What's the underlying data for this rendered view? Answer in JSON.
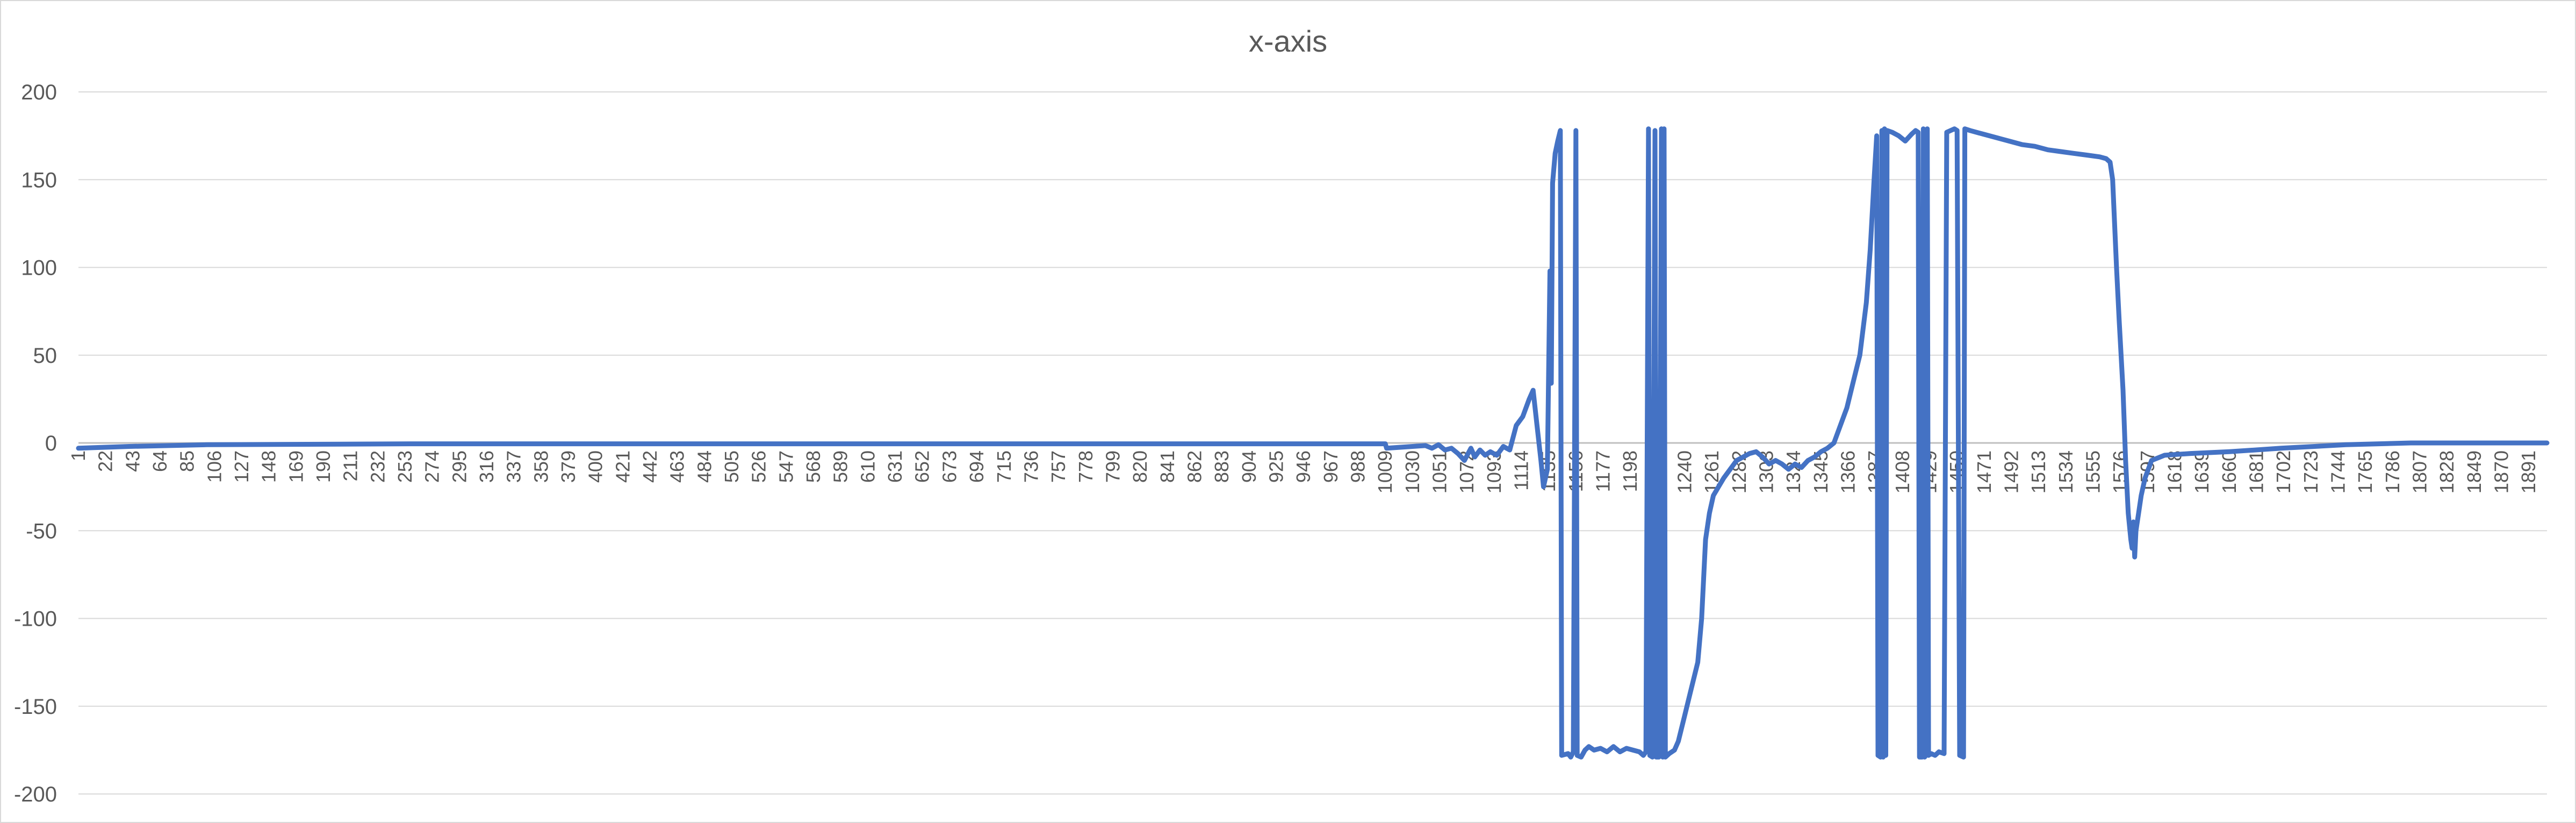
{
  "chart_data": {
    "type": "line",
    "title": "x-axis",
    "xlabel": "",
    "ylabel": "",
    "ylim": [
      -200,
      200
    ],
    "y_ticks": [
      200,
      150,
      100,
      50,
      0,
      -50,
      -100,
      -150,
      -200
    ],
    "x_range": [
      1,
      1905
    ],
    "x_ticks": [
      1,
      22,
      43,
      64,
      85,
      106,
      127,
      148,
      169,
      190,
      211,
      232,
      253,
      274,
      295,
      316,
      337,
      358,
      379,
      400,
      421,
      442,
      463,
      484,
      505,
      526,
      547,
      568,
      589,
      610,
      631,
      652,
      673,
      694,
      715,
      736,
      757,
      778,
      799,
      820,
      841,
      862,
      883,
      904,
      925,
      946,
      967,
      988,
      1009,
      1030,
      1051,
      1072,
      1093,
      1114,
      1135,
      1156,
      1177,
      1198,
      1219,
      1240,
      1261,
      1282,
      1303,
      1324,
      1345,
      1366,
      1387,
      1408,
      1429,
      1450,
      1471,
      1492,
      1513,
      1534,
      1555,
      1576,
      1597,
      1618,
      1639,
      1660,
      1681,
      1702,
      1723,
      1744,
      1765,
      1786,
      1807,
      1828,
      1849,
      1870,
      1891
    ],
    "grid": true,
    "legend": "none",
    "color": "#4472C4",
    "series": [
      {
        "values": [
          [
            1,
            -3
          ],
          [
            40,
            -2
          ],
          [
            100,
            -1
          ],
          [
            260,
            -0.5
          ],
          [
            1009,
            -0.5
          ],
          [
            1010,
            -3
          ],
          [
            1030,
            -2
          ],
          [
            1040,
            -1.5
          ],
          [
            1045,
            -3
          ],
          [
            1050,
            -1
          ],
          [
            1055,
            -4
          ],
          [
            1060,
            -3
          ],
          [
            1065,
            -6
          ],
          [
            1070,
            -10
          ],
          [
            1075,
            -3
          ],
          [
            1078,
            -8
          ],
          [
            1082,
            -4
          ],
          [
            1086,
            -7
          ],
          [
            1090,
            -5
          ],
          [
            1095,
            -7
          ],
          [
            1100,
            -2
          ],
          [
            1105,
            -4
          ],
          [
            1110,
            10
          ],
          [
            1115,
            15
          ],
          [
            1120,
            25
          ],
          [
            1123,
            30
          ],
          [
            1126,
            10
          ],
          [
            1129,
            -10
          ],
          [
            1131,
            -25
          ],
          [
            1134,
            -15
          ],
          [
            1136,
            98
          ],
          [
            1137,
            34
          ],
          [
            1138,
            148
          ],
          [
            1140,
            165
          ],
          [
            1142,
            172
          ],
          [
            1144,
            178
          ],
          [
            1145,
            -178
          ],
          [
            1150,
            -177
          ],
          [
            1152,
            -179
          ],
          [
            1154,
            -176
          ],
          [
            1156,
            178
          ],
          [
            1157,
            -178
          ],
          [
            1160,
            -179
          ],
          [
            1163,
            -175
          ],
          [
            1166,
            -173
          ],
          [
            1170,
            -175
          ],
          [
            1175,
            -174
          ],
          [
            1180,
            -176
          ],
          [
            1185,
            -173
          ],
          [
            1190,
            -176
          ],
          [
            1195,
            -174
          ],
          [
            1200,
            -175
          ],
          [
            1205,
            -176
          ],
          [
            1208,
            -178
          ],
          [
            1210,
            -176
          ],
          [
            1212,
            179
          ],
          [
            1213,
            -178
          ],
          [
            1215,
            -179
          ],
          [
            1217,
            178
          ],
          [
            1218,
            -179
          ],
          [
            1220,
            -179
          ],
          [
            1222,
            179
          ],
          [
            1223,
            -179
          ],
          [
            1224,
            179
          ],
          [
            1225,
            -179
          ],
          [
            1228,
            -177
          ],
          [
            1232,
            -175
          ],
          [
            1235,
            -170
          ],
          [
            1240,
            -155
          ],
          [
            1245,
            -140
          ],
          [
            1250,
            -125
          ],
          [
            1253,
            -100
          ],
          [
            1256,
            -55
          ],
          [
            1259,
            -40
          ],
          [
            1262,
            -30
          ],
          [
            1266,
            -25
          ],
          [
            1270,
            -20
          ],
          [
            1275,
            -15
          ],
          [
            1280,
            -10
          ],
          [
            1285,
            -8
          ],
          [
            1290,
            -6
          ],
          [
            1295,
            -5
          ],
          [
            1300,
            -8
          ],
          [
            1305,
            -12
          ],
          [
            1310,
            -10
          ],
          [
            1315,
            -12
          ],
          [
            1320,
            -15
          ],
          [
            1325,
            -12
          ],
          [
            1330,
            -14
          ],
          [
            1335,
            -10
          ],
          [
            1340,
            -8
          ],
          [
            1345,
            -5
          ],
          [
            1350,
            -3
          ],
          [
            1355,
            0
          ],
          [
            1360,
            10
          ],
          [
            1365,
            20
          ],
          [
            1370,
            35
          ],
          [
            1375,
            50
          ],
          [
            1380,
            80
          ],
          [
            1383,
            110
          ],
          [
            1386,
            150
          ],
          [
            1388,
            175
          ],
          [
            1389,
            -178
          ],
          [
            1391,
            -179
          ],
          [
            1392,
            178
          ],
          [
            1393,
            -179
          ],
          [
            1394,
            179
          ],
          [
            1395,
            -178
          ],
          [
            1396,
            178
          ],
          [
            1400,
            177
          ],
          [
            1405,
            175
          ],
          [
            1410,
            172
          ],
          [
            1415,
            176
          ],
          [
            1418,
            178
          ],
          [
            1420,
            177
          ],
          [
            1421,
            -179
          ],
          [
            1423,
            -179
          ],
          [
            1424,
            179
          ],
          [
            1425,
            -179
          ],
          [
            1426,
            -178
          ],
          [
            1427,
            179
          ],
          [
            1428,
            -178
          ],
          [
            1430,
            -177
          ],
          [
            1433,
            -178
          ],
          [
            1436,
            -176
          ],
          [
            1440,
            -177
          ],
          [
            1442,
            177
          ],
          [
            1445,
            178
          ],
          [
            1448,
            179
          ],
          [
            1450,
            178
          ],
          [
            1452,
            -178
          ],
          [
            1455,
            -179
          ],
          [
            1456,
            179
          ],
          [
            1460,
            178
          ],
          [
            1470,
            176
          ],
          [
            1480,
            174
          ],
          [
            1490,
            172
          ],
          [
            1500,
            170
          ],
          [
            1510,
            169
          ],
          [
            1520,
            167
          ],
          [
            1530,
            166
          ],
          [
            1540,
            165
          ],
          [
            1550,
            164
          ],
          [
            1560,
            163
          ],
          [
            1565,
            162
          ],
          [
            1568,
            160
          ],
          [
            1570,
            150
          ],
          [
            1573,
            100
          ],
          [
            1575,
            70
          ],
          [
            1578,
            30
          ],
          [
            1580,
            -10
          ],
          [
            1582,
            -40
          ],
          [
            1584,
            -55
          ],
          [
            1585,
            -60
          ],
          [
            1586,
            -45
          ],
          [
            1587,
            -65
          ],
          [
            1588,
            -50
          ],
          [
            1590,
            -40
          ],
          [
            1592,
            -30
          ],
          [
            1595,
            -20
          ],
          [
            1600,
            -10
          ],
          [
            1610,
            -7
          ],
          [
            1630,
            -6
          ],
          [
            1660,
            -5
          ],
          [
            1700,
            -3
          ],
          [
            1750,
            -1
          ],
          [
            1800,
            0
          ],
          [
            1905,
            0
          ]
        ]
      }
    ]
  }
}
